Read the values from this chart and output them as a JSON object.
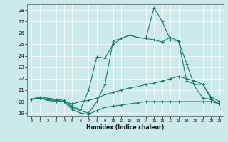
{
  "xlabel": "Humidex (Indice chaleur)",
  "background_color": "#cceaea",
  "grid_color": "#ffffff",
  "line_color": "#1a7a6a",
  "xlim": [
    -0.5,
    23.5
  ],
  "ylim": [
    18.7,
    28.5
  ],
  "xticks": [
    0,
    1,
    2,
    3,
    4,
    5,
    6,
    7,
    8,
    9,
    10,
    11,
    12,
    13,
    14,
    15,
    16,
    17,
    18,
    19,
    20,
    21,
    22,
    23
  ],
  "yticks": [
    19,
    20,
    21,
    22,
    23,
    24,
    25,
    26,
    27,
    28
  ],
  "line1_x": [
    0,
    1,
    2,
    3,
    4,
    5,
    6,
    7,
    8,
    9,
    10,
    11,
    12,
    13,
    14,
    15,
    16,
    17,
    18,
    19,
    20,
    21,
    22,
    23
  ],
  "line1_y": [
    20.2,
    20.3,
    20.1,
    20.0,
    20.0,
    19.3,
    19.0,
    18.9,
    19.2,
    19.5,
    19.6,
    19.7,
    19.8,
    19.9,
    20.0,
    20.0,
    20.0,
    20.0,
    20.0,
    20.0,
    20.0,
    20.0,
    20.0,
    19.8
  ],
  "line2_x": [
    0,
    1,
    2,
    3,
    4,
    5,
    6,
    7,
    8,
    9,
    10,
    11,
    12,
    13,
    14,
    15,
    16,
    17,
    18,
    19,
    20,
    21,
    22,
    23
  ],
  "line2_y": [
    20.2,
    20.3,
    20.2,
    20.1,
    20.0,
    19.8,
    20.0,
    20.1,
    20.3,
    20.6,
    20.8,
    21.0,
    21.2,
    21.3,
    21.5,
    21.6,
    21.8,
    22.0,
    22.2,
    22.0,
    21.8,
    21.5,
    20.4,
    20.0
  ],
  "line3_x": [
    0,
    1,
    2,
    3,
    4,
    5,
    6,
    7,
    8,
    9,
    10,
    11,
    12,
    13,
    14,
    15,
    16,
    17,
    18,
    19,
    20,
    21,
    22,
    23
  ],
  "line3_y": [
    20.2,
    20.3,
    20.2,
    20.1,
    20.0,
    19.5,
    19.2,
    19.0,
    20.0,
    21.5,
    25.3,
    25.5,
    25.8,
    25.6,
    25.5,
    25.4,
    25.2,
    25.6,
    25.3,
    23.3,
    21.3,
    20.3,
    20.2,
    19.8
  ],
  "line4_x": [
    0,
    1,
    2,
    3,
    4,
    5,
    6,
    7,
    8,
    9,
    10,
    11,
    12,
    13,
    14,
    15,
    16,
    17,
    18,
    19,
    20,
    21,
    22,
    23
  ],
  "line4_y": [
    20.2,
    20.4,
    20.3,
    20.2,
    20.1,
    19.6,
    19.3,
    21.0,
    23.9,
    23.8,
    25.0,
    25.5,
    25.8,
    25.6,
    25.5,
    28.2,
    27.0,
    25.4,
    25.3,
    21.8,
    21.5,
    21.5,
    20.2,
    19.8
  ]
}
